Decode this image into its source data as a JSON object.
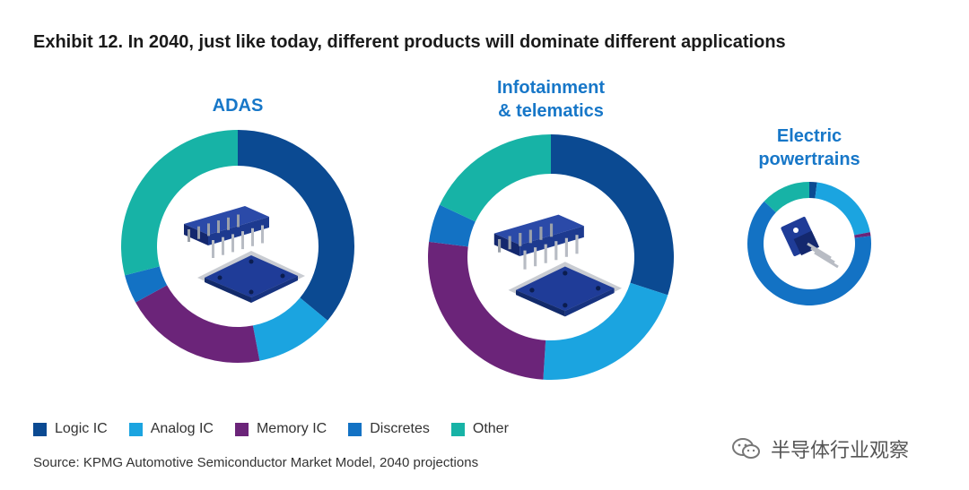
{
  "title": "Exhibit 12. In 2040, just like today, different products will dominate different applications",
  "legend": [
    {
      "label": "Logic IC",
      "color": "#0b4a92"
    },
    {
      "label": "Analog IC",
      "color": "#1ba4e0"
    },
    {
      "label": "Memory IC",
      "color": "#6b2479"
    },
    {
      "label": "Discretes",
      "color": "#1372c4"
    },
    {
      "label": "Other",
      "color": "#17b3a6"
    }
  ],
  "source": "Source: KPMG Automotive Semiconductor Market Model, 2040 projections",
  "watermark": "半导体行业观察",
  "chart_data": [
    {
      "type": "pie",
      "title_lines": [
        "ADAS"
      ],
      "title_color": "#1777c8",
      "categories": [
        "Logic IC",
        "Analog IC",
        "Memory IC",
        "Discretes",
        "Other"
      ],
      "values": [
        36,
        11,
        20,
        4,
        29
      ],
      "icon": "logic-chip-icon"
    },
    {
      "type": "pie",
      "title_lines": [
        "Infotainment",
        "& telematics"
      ],
      "title_color": "#1777c8",
      "categories": [
        "Logic IC",
        "Analog IC",
        "Memory IC",
        "Discretes",
        "Other"
      ],
      "values": [
        30,
        21,
        26,
        5,
        18
      ],
      "icon": "logic-chip-icon"
    },
    {
      "type": "pie",
      "title_lines": [
        "Electric",
        "powertrains"
      ],
      "title_color": "#1777c8",
      "categories": [
        "Logic IC",
        "Analog IC",
        "Memory IC",
        "Discretes",
        "Other"
      ],
      "values": [
        2,
        20,
        1,
        64,
        13
      ],
      "icon": "power-transistor-icon"
    }
  ]
}
